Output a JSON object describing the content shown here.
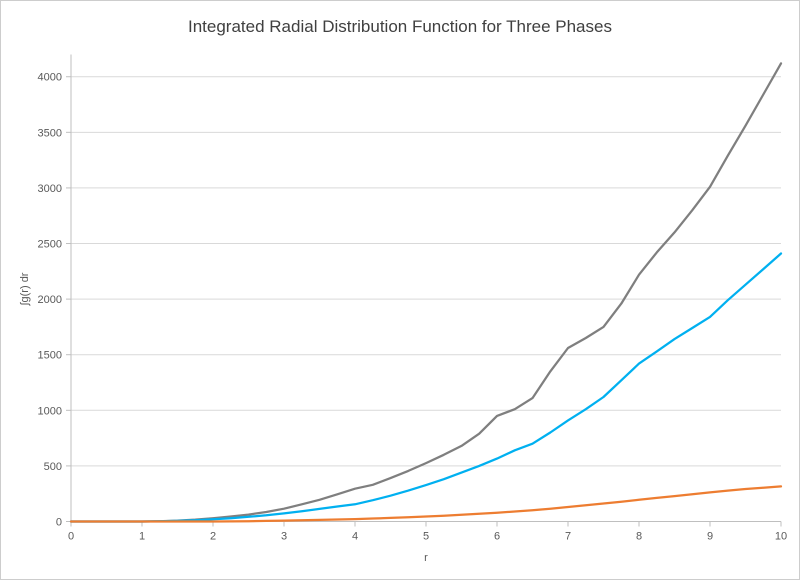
{
  "chart_data": {
    "type": "line",
    "title": "Integrated Radial Distribution Function for Three Phases",
    "xlabel": "r",
    "ylabel": "∫g(r) dr",
    "xlim": [
      0,
      10
    ],
    "ylim": [
      0,
      4200
    ],
    "x_ticks": [
      0,
      1,
      2,
      3,
      4,
      5,
      6,
      7,
      8,
      9,
      10
    ],
    "y_ticks": [
      0,
      500,
      1000,
      1500,
      2000,
      2500,
      3000,
      3500,
      4000
    ],
    "grid": "horizontal-only",
    "legend": "none",
    "x": [
      0,
      0.25,
      0.5,
      0.75,
      1,
      1.25,
      1.5,
      1.75,
      2,
      2.25,
      2.5,
      2.75,
      3,
      3.25,
      3.5,
      3.75,
      4,
      4.25,
      4.5,
      4.75,
      5,
      5.25,
      5.5,
      5.75,
      6,
      6.25,
      6.5,
      6.75,
      7,
      7.25,
      7.5,
      7.75,
      8,
      8.25,
      8.5,
      8.75,
      9,
      9.25,
      9.5,
      9.75,
      10
    ],
    "series": [
      {
        "name": "gray-series",
        "color": "#7f7f7f",
        "values": [
          0,
          0,
          0,
          0,
          0,
          3,
          8,
          17,
          30,
          45,
          62,
          85,
          115,
          155,
          195,
          245,
          295,
          330,
          390,
          455,
          525,
          600,
          680,
          790,
          950,
          1010,
          1110,
          1350,
          1560,
          1650,
          1750,
          1960,
          2220,
          2420,
          2600,
          2800,
          3010,
          3290,
          3560,
          3840,
          4120
        ]
      },
      {
        "name": "blue-series",
        "color": "#00b0f0",
        "values": [
          0,
          0,
          0,
          0,
          0,
          2,
          5,
          11,
          20,
          30,
          42,
          56,
          73,
          92,
          113,
          135,
          155,
          192,
          232,
          278,
          327,
          380,
          440,
          500,
          566,
          640,
          700,
          800,
          909,
          1010,
          1120,
          1270,
          1420,
          1530,
          1640,
          1740,
          1840,
          1990,
          2130,
          2270,
          2410
        ]
      },
      {
        "name": "orange-series",
        "color": "#ed7d31",
        "values": [
          0,
          0,
          0,
          0,
          0,
          0,
          0,
          0,
          0,
          1,
          3,
          5,
          8,
          11,
          14,
          18,
          22,
          27,
          32,
          38,
          45,
          52,
          60,
          69,
          78,
          90,
          102,
          115,
          130,
          146,
          162,
          178,
          195,
          212,
          228,
          245,
          262,
          278,
          292,
          304,
          316
        ]
      }
    ],
    "colors": {
      "gridline": "#d9d9d9",
      "axis_line": "#bfbfbf",
      "tick_text": "#595959",
      "title_text": "#404040",
      "background": "#ffffff"
    }
  }
}
